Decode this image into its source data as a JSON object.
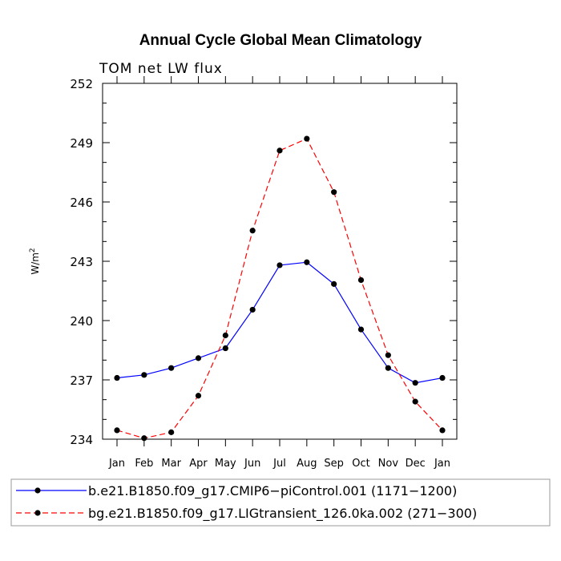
{
  "chart_data": {
    "type": "line",
    "title": "Annual Cycle Global Mean Climatology",
    "subtitle": "TOM net LW flux",
    "xlabel": "",
    "ylabel": "W/m",
    "ylabel_sup": "2",
    "categories": [
      "Jan",
      "Feb",
      "Mar",
      "Apr",
      "May",
      "Jun",
      "Jul",
      "Aug",
      "Sep",
      "Oct",
      "Nov",
      "Dec",
      "Jan"
    ],
    "ylim": [
      234,
      252
    ],
    "yticks": [
      "234",
      "237",
      "240",
      "243",
      "246",
      "249",
      "252"
    ],
    "series": [
      {
        "name": "b.e21.B1850.f09_g17.CMIP6−piControl.001 (1171−1200)",
        "color": "#0000ff",
        "dash": "solid",
        "values": [
          237.1,
          237.25,
          237.6,
          238.1,
          238.6,
          240.55,
          242.8,
          242.95,
          241.85,
          239.55,
          237.6,
          236.85,
          237.1
        ]
      },
      {
        "name": "bg.e21.B1850.f09_g17.LIGtransient_126.0ka.002 (271−300)",
        "color": "#ff0000",
        "dash": "dashed",
        "values": [
          234.45,
          234.05,
          234.35,
          236.2,
          239.25,
          244.55,
          248.6,
          249.2,
          246.5,
          242.05,
          238.25,
          235.9,
          234.45
        ]
      }
    ]
  }
}
